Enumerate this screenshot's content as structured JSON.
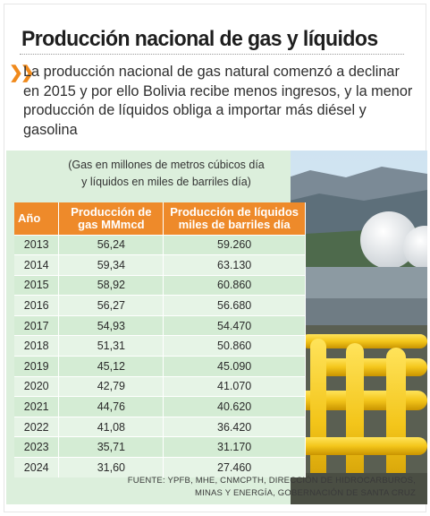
{
  "title": "Producción nacional de gas y líquidos",
  "lead": "La producción nacional de gas natural comenzó a declinar en 2015 y por ello Bolivia recibe menos ingresos, y la menor producción de líquidos obliga a importar más diésel y gasolina",
  "note_line1": "(Gas en millones de metros cúbicos día",
  "note_line2": "y líquidos en miles de barriles día)",
  "table": {
    "headers": [
      "Año",
      "Producción de gas MMmcd",
      "Producción de líquidos miles de barriles día"
    ],
    "rows": [
      [
        "2013",
        "56,24",
        "59.260"
      ],
      [
        "2014",
        "59,34",
        "63.130"
      ],
      [
        "2015",
        "58,92",
        "60.860"
      ],
      [
        "2016",
        "56,27",
        "56.680"
      ],
      [
        "2017",
        "54,93",
        "54.470"
      ],
      [
        "2018",
        "51,31",
        "50.860"
      ],
      [
        "2019",
        "45,12",
        "45.090"
      ],
      [
        "2020",
        "42,79",
        "41.070"
      ],
      [
        "2021",
        "44,76",
        "40.620"
      ],
      [
        "2022",
        "41,08",
        "36.420"
      ],
      [
        "2023",
        "35,71",
        "31.170"
      ],
      [
        "2024",
        "31,60",
        "27.460"
      ]
    ]
  },
  "source_line1": "FUENTE: YPFB, MHE, CNMCPTH, DIRECCIÓN DE HIDROCARBUROS,",
  "source_line2": "MINAS Y ENERGÍA, GOBERNACIÓN DE SANTA CRUZ",
  "colors": {
    "accent": "#ee8a2a",
    "row_band": "#d4ecd4",
    "pipe": "#f3c51a"
  },
  "icons": {
    "bullet": "double-chevron-right-icon"
  }
}
